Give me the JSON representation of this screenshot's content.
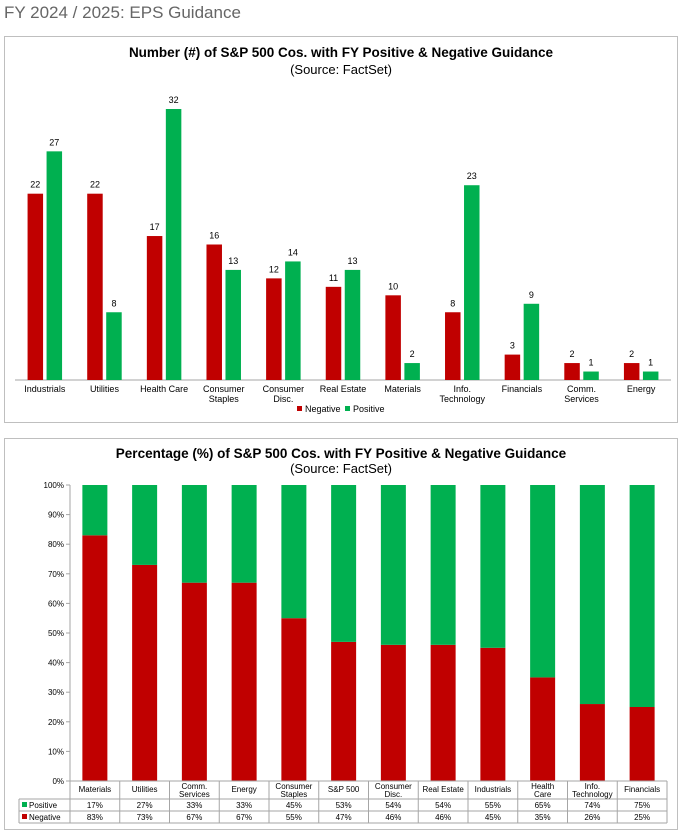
{
  "page": {
    "title": "FY 2024 / 2025: EPS Guidance"
  },
  "colors": {
    "negative": "#c00000",
    "positive": "#00b050"
  },
  "chart_data": [
    {
      "type": "bar",
      "title": "Number (#) of S&P 500 Cos. with FY Positive & Negative Guidance",
      "subtitle": "(Source: FactSet)",
      "categories": [
        [
          "Industrials"
        ],
        [
          "Utilities"
        ],
        [
          "Health Care"
        ],
        [
          "Consumer",
          "Staples"
        ],
        [
          "Consumer",
          "Disc."
        ],
        [
          "Real Estate"
        ],
        [
          "Materials"
        ],
        [
          "Info.",
          "Technology"
        ],
        [
          "Financials"
        ],
        [
          "Comm.",
          "Services"
        ],
        [
          "Energy"
        ]
      ],
      "series": [
        {
          "name": "Negative",
          "values": [
            22,
            22,
            17,
            16,
            12,
            11,
            10,
            8,
            3,
            2,
            2
          ]
        },
        {
          "name": "Positive",
          "values": [
            27,
            8,
            32,
            13,
            14,
            13,
            2,
            23,
            9,
            1,
            1
          ]
        }
      ],
      "legend": "bottom",
      "grid": false
    },
    {
      "type": "bar",
      "stacked": true,
      "title": "Percentage (%) of S&P 500 Cos. with FY Positive & Negative Guidance",
      "subtitle": "(Source: FactSet)",
      "categories": [
        [
          "Materials"
        ],
        [
          "Utilities"
        ],
        [
          "Comm.",
          "Services"
        ],
        [
          "Energy"
        ],
        [
          "Consumer",
          "Staples"
        ],
        [
          "S&P 500"
        ],
        [
          "Consumer",
          "Disc."
        ],
        [
          "Real Estate"
        ],
        [
          "Industrials"
        ],
        [
          "Health",
          "Care"
        ],
        [
          "Info.",
          "Technology"
        ],
        [
          "Financials"
        ]
      ],
      "series": [
        {
          "name": "Positive",
          "values": [
            17,
            27,
            33,
            33,
            45,
            53,
            54,
            54,
            55,
            65,
            74,
            75
          ],
          "labels": [
            "17%",
            "27%",
            "33%",
            "33%",
            "45%",
            "53%",
            "54%",
            "54%",
            "55%",
            "65%",
            "74%",
            "75%"
          ]
        },
        {
          "name": "Negative",
          "values": [
            83,
            73,
            67,
            67,
            55,
            47,
            46,
            46,
            45,
            35,
            26,
            25
          ],
          "labels": [
            "83%",
            "73%",
            "67%",
            "67%",
            "55%",
            "47%",
            "46%",
            "46%",
            "45%",
            "35%",
            "26%",
            "25%"
          ]
        }
      ],
      "ylim": [
        0,
        100
      ],
      "yticks": [
        "0%",
        "10%",
        "20%",
        "30%",
        "40%",
        "50%",
        "60%",
        "70%",
        "80%",
        "90%",
        "100%"
      ],
      "legend": "data-table",
      "grid": false
    }
  ]
}
